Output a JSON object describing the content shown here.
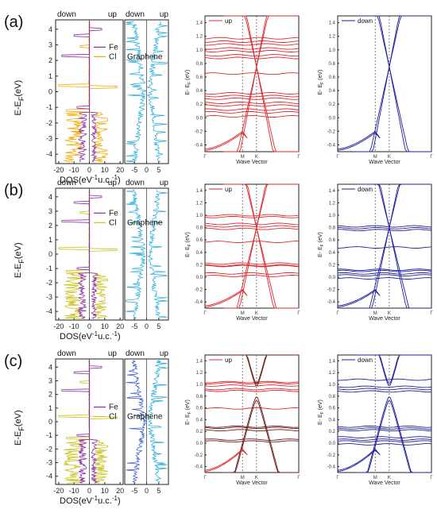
{
  "panels": [
    "(a)",
    "(b)",
    "(c)"
  ],
  "dos_axes": {
    "ylabel": "E-E",
    "ylabel_sub": "F",
    "ylabel_unit": "(eV)",
    "xlabel": "DOS(eV",
    "xlabel_sup": "-1",
    "xlabel_rest": "u.c.",
    "xlabel_sup2": "-1",
    "xlabel_end": ")",
    "down": "down",
    "up": "up",
    "left_ticks": [
      "-20",
      "-10",
      "0",
      "10",
      "20"
    ],
    "right_ticks": [
      "-5",
      "0",
      "5"
    ],
    "yticks": [
      "4",
      "3",
      "2",
      "1",
      "0",
      "-1",
      "-2",
      "-3",
      "-4"
    ],
    "legend": [
      "Fe",
      "Cl"
    ],
    "graphene": "Graphene"
  },
  "band_axes": {
    "ylabel": "E- E",
    "ylabel_sub": "F",
    "ylabel_unit": " (eV)",
    "xlabel": "Wave Vector",
    "kpoints": [
      "Γ",
      "M",
      "K",
      "Γ"
    ],
    "yticks": [
      "1.4",
      "1.2",
      "1.0",
      "0.8",
      "0.6",
      "0.4",
      "0.2",
      "0.0",
      "-0.2",
      "-0.4"
    ],
    "up": "up",
    "down": "down"
  },
  "colors": {
    "fe": "#8a2aa8",
    "cl": "#f2a900",
    "cl_b": "#c9c21a",
    "graphene": "#1aa7d8",
    "graphene_dark": "#2a4fc8",
    "up": "#e0262a",
    "down": "#1f1f9a",
    "band_brown": "#6b1e18"
  },
  "chart_data": [
    {
      "panel": "(a)",
      "type": "line",
      "left": "DOS",
      "spin_up_dirac_crossing_eV": 0.75,
      "down_dirac_crossing_eV": 0.75,
      "ylim_dos": [
        -4.6,
        4.6
      ],
      "ylim_band": [
        -0.5,
        1.5
      ]
    },
    {
      "panel": "(b)",
      "type": "line",
      "left": "DOS",
      "spin_up_dirac_crossing_eV": 0.8,
      "down_dirac_crossing_eV": 0.8,
      "ylim_dos": [
        -4.6,
        4.6
      ],
      "ylim_band": [
        -0.5,
        1.5
      ]
    },
    {
      "panel": "(c)",
      "type": "line",
      "left": "DOS",
      "spin_up_gap_eV": [
        0.7,
        0.95
      ],
      "down_gap_eV": [
        0.7,
        0.95
      ],
      "ylim_dos": [
        -4.6,
        4.6
      ],
      "ylim_band": [
        -0.5,
        1.5
      ]
    }
  ]
}
